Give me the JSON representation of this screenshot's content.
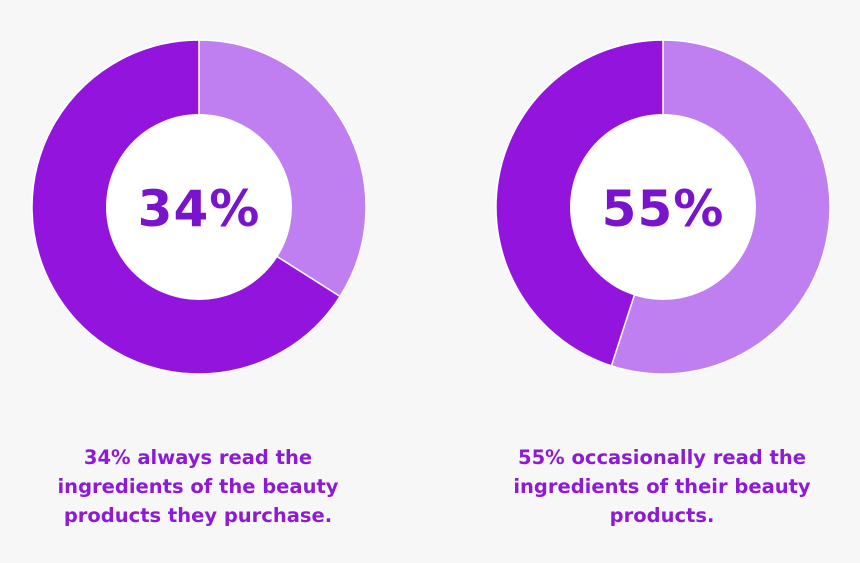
{
  "colors": {
    "background": "#f7f7f7",
    "primary": "#9314dc",
    "secondary": "#c07ff0",
    "hole": "#ffffff",
    "text": "#8e1ad6",
    "center_text": "#7a14cc"
  },
  "chart_data": [
    {
      "type": "pie",
      "variant": "donut",
      "center_label": "34%",
      "slices": [
        {
          "value": 34,
          "color": "#c07ff0"
        },
        {
          "value": 66,
          "color": "#9314dc"
        }
      ],
      "caption": "34% always read the\ningredients of the beauty\nproducts they purchase."
    },
    {
      "type": "pie",
      "variant": "donut",
      "center_label": "55%",
      "slices": [
        {
          "value": 55,
          "color": "#c07ff0"
        },
        {
          "value": 45,
          "color": "#9314dc"
        }
      ],
      "caption": "55% occasionally read the\ningredients of their beauty\nproducts."
    }
  ]
}
